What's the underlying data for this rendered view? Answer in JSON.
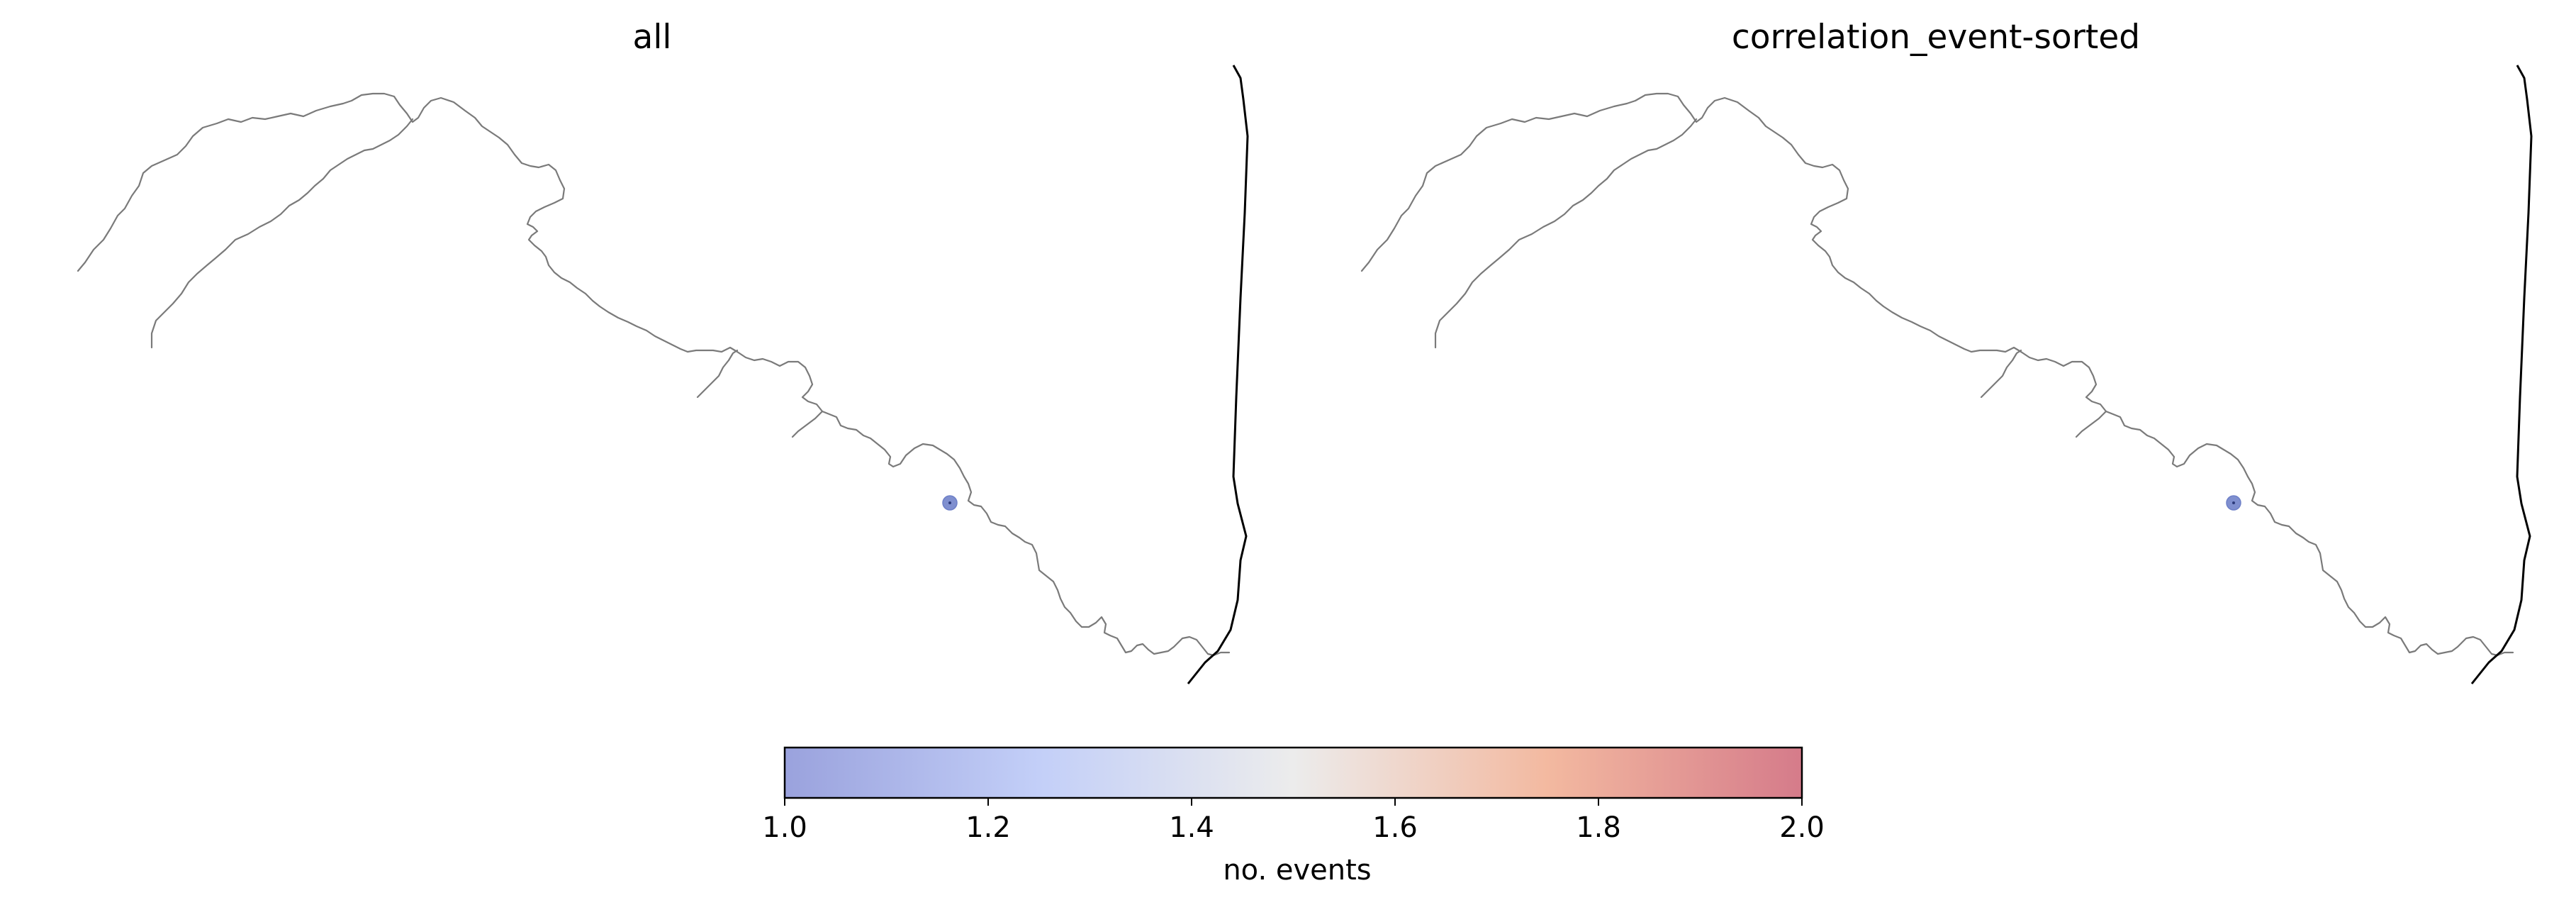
{
  "panels": [
    {
      "title": "all"
    },
    {
      "title": "correlation_event-sorted"
    }
  ],
  "events": [
    {
      "panel": 0,
      "value": 1.0
    },
    {
      "panel": 1,
      "value": 1.0
    }
  ],
  "colorbar": {
    "label": "no. events",
    "min": 1.0,
    "max": 2.0,
    "ticks": [
      "1.0",
      "1.2",
      "1.4",
      "1.6",
      "1.8",
      "2.0"
    ],
    "colormap": "coolwarm",
    "low_color": "#9aa2dd",
    "high_color": "#d57b8a"
  }
}
